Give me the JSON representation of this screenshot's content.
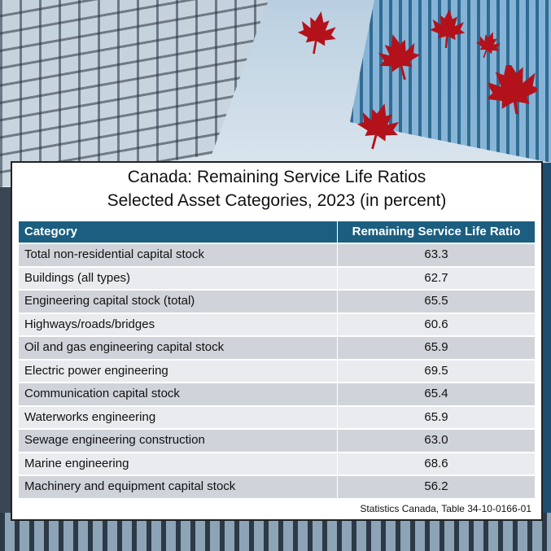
{
  "chart_data": {
    "type": "table",
    "title": "Canada: Remaining Service Life Ratios",
    "subtitle": "Selected Asset Categories, 2023 (in percent)",
    "columns": [
      "Category",
      "Remaining Service Life Ratio"
    ],
    "rows": [
      {
        "category": "Total non-residential capital stock",
        "value": "63.3"
      },
      {
        "category": "Buildings (all types)",
        "value": "62.7"
      },
      {
        "category": "Engineering capital stock (total)",
        "value": "65.5"
      },
      {
        "category": "Highways/roads/bridges",
        "value": "60.6"
      },
      {
        "category": "Oil and gas engineering capital stock",
        "value": "65.9"
      },
      {
        "category": "Electric power engineering",
        "value": "69.5"
      },
      {
        "category": "Communication capital stock",
        "value": "65.4"
      },
      {
        "category": "Waterworks engineering",
        "value": "65.9"
      },
      {
        "category": "Sewage engineering construction",
        "value": "63.0"
      },
      {
        "category": "Marine engineering",
        "value": "68.6"
      },
      {
        "category": "Machinery and equipment capital stock",
        "value": "56.2"
      }
    ],
    "source": "Statistics Canada, Table 34-10-0166-01"
  },
  "colors": {
    "header": "#1b5e80",
    "row_dark": "#d0d4da",
    "row_light": "#e9ebee",
    "leaf": "#b3121b"
  }
}
